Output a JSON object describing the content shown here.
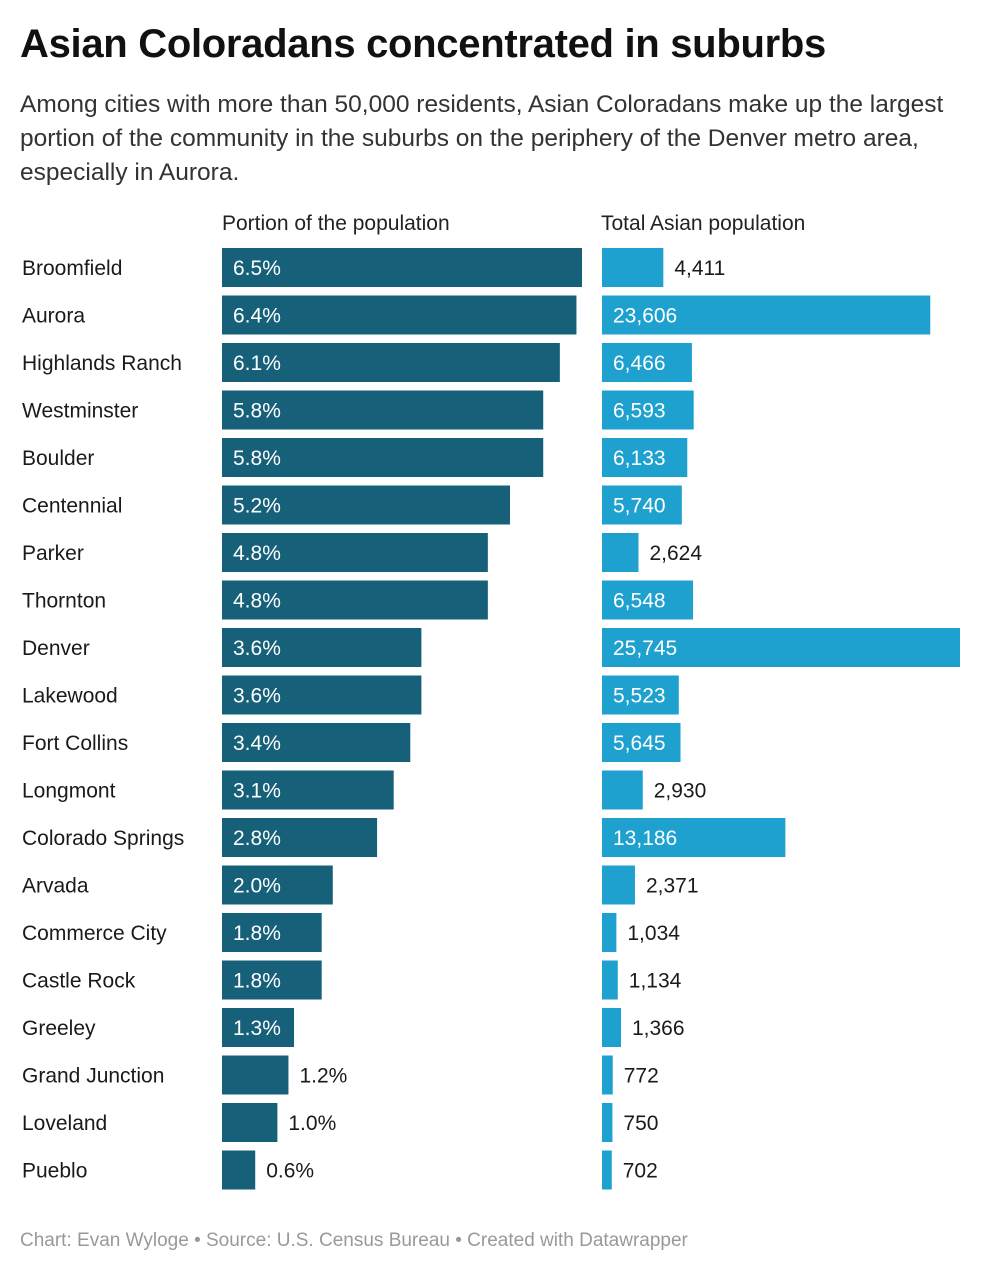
{
  "title": "Asian Coloradans concentrated in suburbs",
  "subtitle": "Among cities with more than 50,000 residents, Asian Coloradans make up the largest portion of the community in the suburbs on the periphery of the Denver metro area, especially in Aurora.",
  "footer": "Chart: Evan Wyloge • Source: U.S. Census Bureau • Created with Datawrapper",
  "colors": {
    "share_bar": "#176079",
    "total_bar": "#1ea1cf",
    "label_inside": "#ffffff",
    "label_outside": "#1a1a1a"
  },
  "chart_data": {
    "type": "bar",
    "orientation": "horizontal",
    "categories": [
      "Broomfield",
      "Aurora",
      "Highlands Ranch",
      "Westminster",
      "Boulder",
      "Centennial",
      "Parker",
      "Thornton",
      "Denver",
      "Lakewood",
      "Fort Collins",
      "Longmont",
      "Colorado Springs",
      "Arvada",
      "Commerce City",
      "Castle Rock",
      "Greeley",
      "Grand Junction",
      "Loveland",
      "Pueblo"
    ],
    "series": [
      {
        "name": "Portion of the population",
        "values": [
          6.5,
          6.4,
          6.1,
          5.8,
          5.8,
          5.2,
          4.8,
          4.8,
          3.6,
          3.6,
          3.4,
          3.1,
          2.8,
          2.0,
          1.8,
          1.8,
          1.3,
          1.2,
          1.0,
          0.6
        ],
        "labels": [
          "6.5%",
          "6.4%",
          "6.1%",
          "5.8%",
          "5.8%",
          "5.2%",
          "4.8%",
          "4.8%",
          "3.6%",
          "3.6%",
          "3.4%",
          "3.1%",
          "2.8%",
          "2.0%",
          "1.8%",
          "1.8%",
          "1.3%",
          "1.2%",
          "1.0%",
          "0.6%"
        ]
      },
      {
        "name": "Total Asian population",
        "values": [
          4411,
          23606,
          6466,
          6593,
          6133,
          5740,
          2624,
          6548,
          25745,
          5523,
          5645,
          2930,
          13186,
          2371,
          1034,
          1134,
          1366,
          772,
          750,
          702
        ],
        "labels": [
          "4,411",
          "23,606",
          "6,466",
          "6,593",
          "6,133",
          "5,740",
          "2,624",
          "6,548",
          "25,745",
          "5,523",
          "5,645",
          "2,930",
          "13,186",
          "2,371",
          "1,034",
          "1,134",
          "1,366",
          "772",
          "750",
          "702"
        ]
      }
    ],
    "grid": false,
    "legend": "none"
  }
}
